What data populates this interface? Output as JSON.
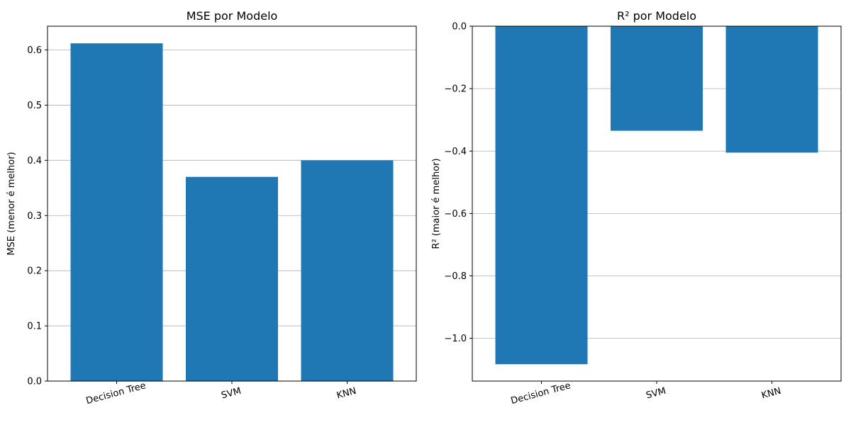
{
  "chart_data": [
    {
      "type": "bar",
      "title": "MSE por Modelo",
      "ylabel": "MSE (menor é melhor)",
      "xlabel": "",
      "categories": [
        "Decision Tree",
        "SVM",
        "KNN"
      ],
      "values": [
        0.612,
        0.37,
        0.4
      ],
      "ylim": [
        0,
        0.643
      ],
      "yticks": [
        0.0,
        0.1,
        0.2,
        0.3,
        0.4,
        0.5,
        0.6
      ],
      "ytick_labels": [
        "0.0",
        "0.1",
        "0.2",
        "0.3",
        "0.4",
        "0.5",
        "0.6"
      ],
      "grid": "y",
      "bar_color": "#1f77b4"
    },
    {
      "type": "bar",
      "title": "R² por Modelo",
      "ylabel": "R² (maior é melhor)",
      "xlabel": "",
      "categories": [
        "Decision Tree",
        "SVM",
        "KNN"
      ],
      "values": [
        -1.083,
        -0.335,
        -0.405
      ],
      "ylim": [
        -1.137,
        0.0
      ],
      "yticks": [
        0.0,
        -0.2,
        -0.4,
        -0.6,
        -0.8,
        -1.0
      ],
      "ytick_labels": [
        "0.0",
        "−0.2",
        "−0.4",
        "−0.6",
        "−0.8",
        "−1.0"
      ],
      "grid": "y",
      "bar_color": "#1f77b4"
    }
  ]
}
